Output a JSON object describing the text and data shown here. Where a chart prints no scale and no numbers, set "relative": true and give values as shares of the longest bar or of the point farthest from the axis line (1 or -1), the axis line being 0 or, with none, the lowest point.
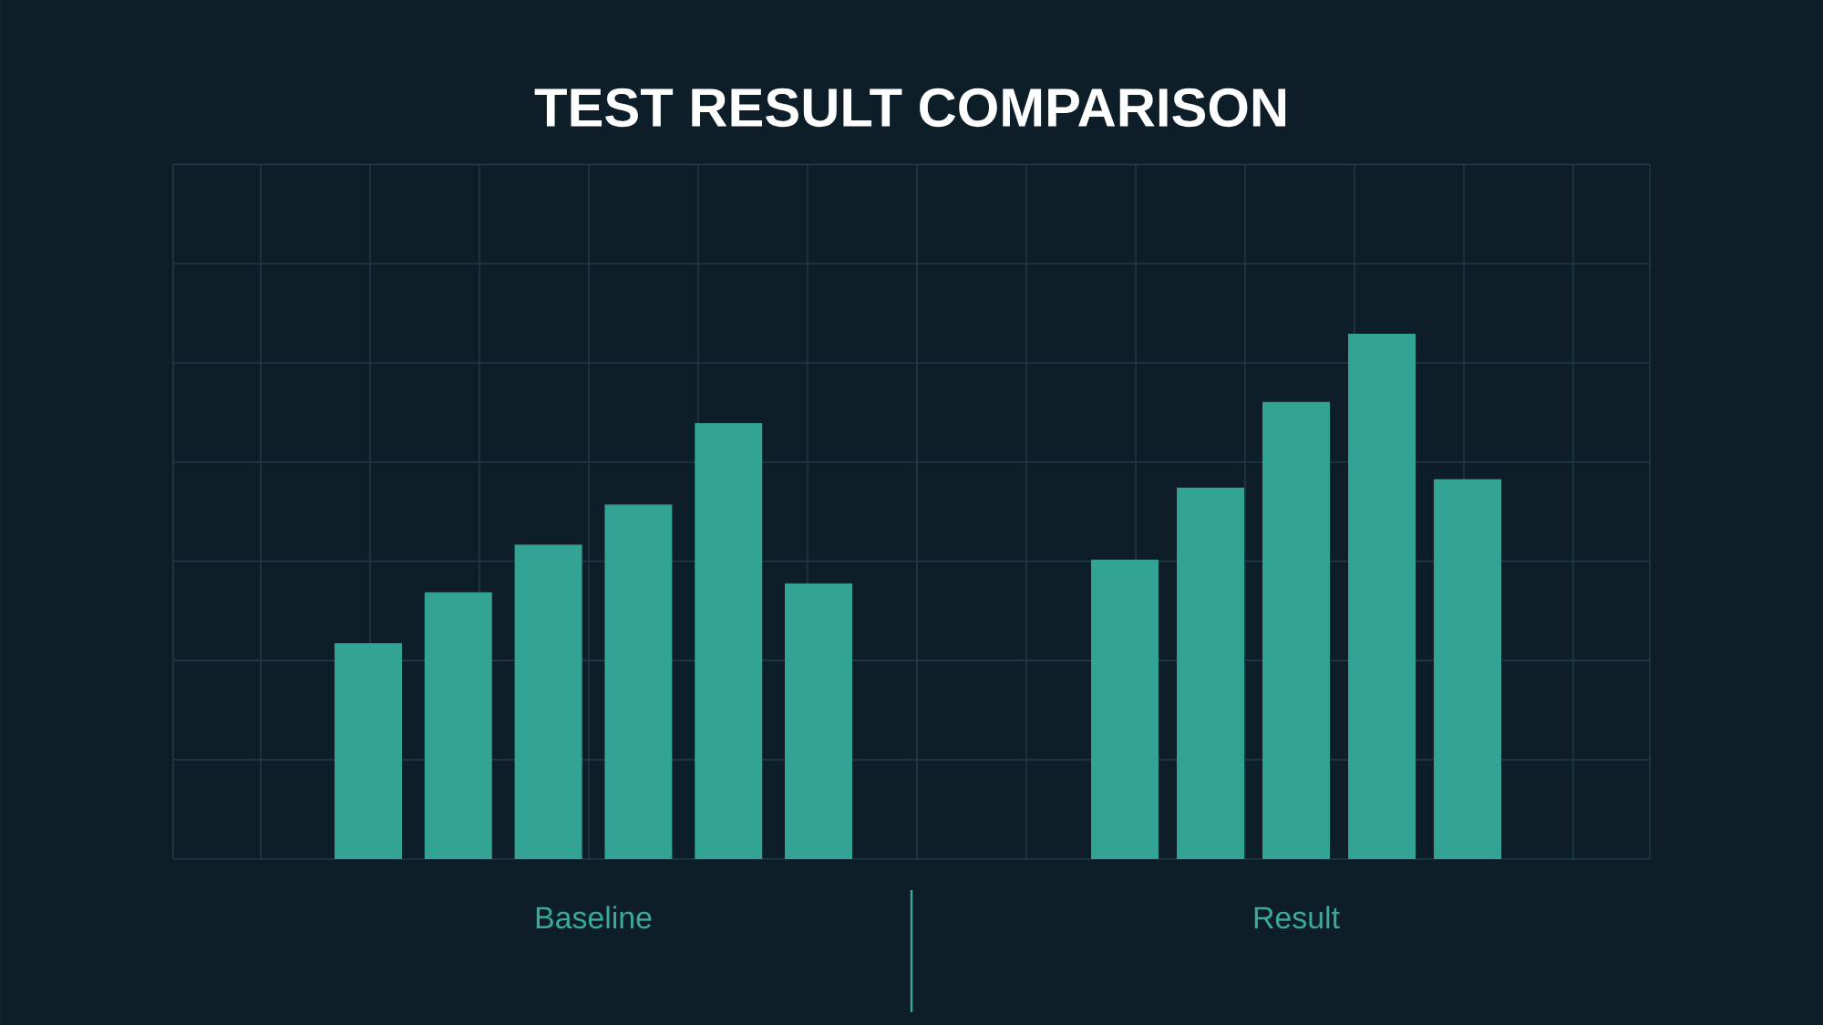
{
  "chart_data": [
    {
      "type": "bar",
      "title": "TEST RESULT COMPARISON",
      "xlabel": "Baseline",
      "categories": [
        null,
        null,
        null,
        null,
        null,
        null
      ],
      "values": [
        0.495,
        0.612,
        0.721,
        0.813,
        1,
        0.632
      ],
      "color": "#33a396",
      "relative": true,
      "grid": true
    },
    {
      "type": "bar",
      "xlabel": "Result",
      "categories": [
        null,
        null,
        null,
        null,
        null
      ],
      "values": [
        0.57,
        0.707,
        0.87,
        1,
        0.723
      ],
      "color": "#33a396",
      "relative": true,
      "grid": true
    }
  ]
}
